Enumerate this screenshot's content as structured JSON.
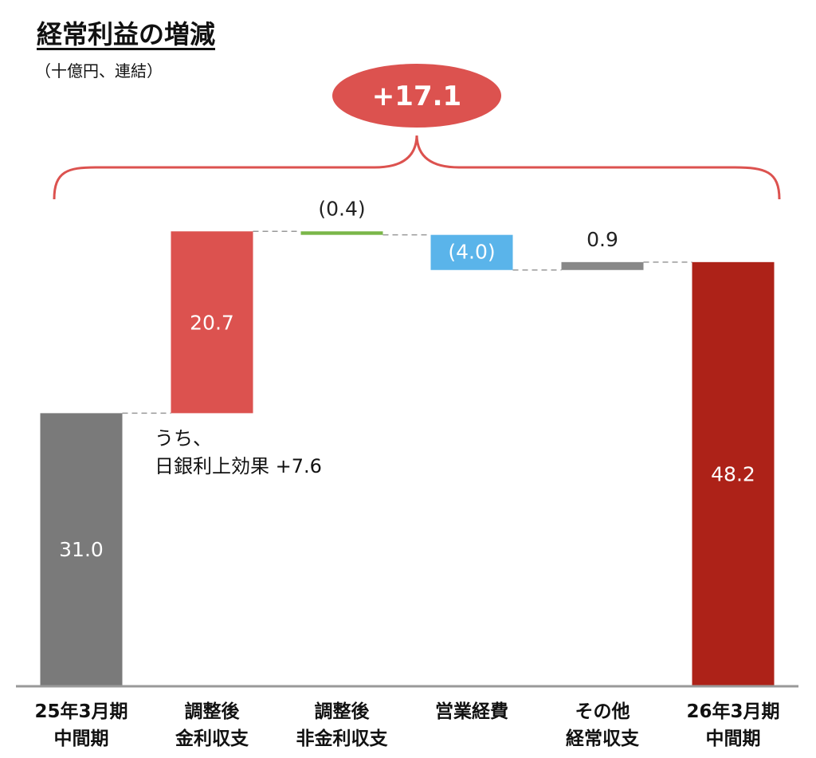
{
  "title": "経常利益の増減",
  "subtitle": "（十億円、連結）",
  "total_change_label": "+17.1",
  "note_lines": [
    "うち、",
    "日銀利上効果 +7.6"
  ],
  "colors": {
    "start": "#7a7a7a",
    "increase": "#dc524f",
    "decrease_small": "#7ab648",
    "decrease": "#5ab4ea",
    "other": "#888888",
    "end": "#ad2218",
    "brace": "#dc524f",
    "axis": "#999999",
    "connector": "#999999"
  },
  "chart_data": {
    "type": "bar",
    "subtype": "waterfall",
    "title": "経常利益の増減",
    "subtitle": "（十億円、連結）",
    "categories": [
      "25年3月期\n中間期",
      "調整後\n金利収支",
      "調整後\n非金利収支",
      "営業経費",
      "その他\n経常収支",
      "26年3月期\n中間期"
    ],
    "values": [
      31.0,
      20.7,
      -0.4,
      -4.0,
      0.9,
      48.2
    ],
    "value_labels": [
      "31.0",
      "20.7",
      "(0.4)",
      "(4.0)",
      "0.9",
      "48.2"
    ],
    "kinds": [
      "total",
      "increase",
      "decrease",
      "decrease",
      "increase",
      "total"
    ],
    "ylim": [
      0,
      56
    ],
    "xlabel": "",
    "ylabel": "",
    "grid": false,
    "legend": null,
    "annotations": [
      "+17.1",
      "うち、 日銀利上効果 +7.6"
    ]
  }
}
